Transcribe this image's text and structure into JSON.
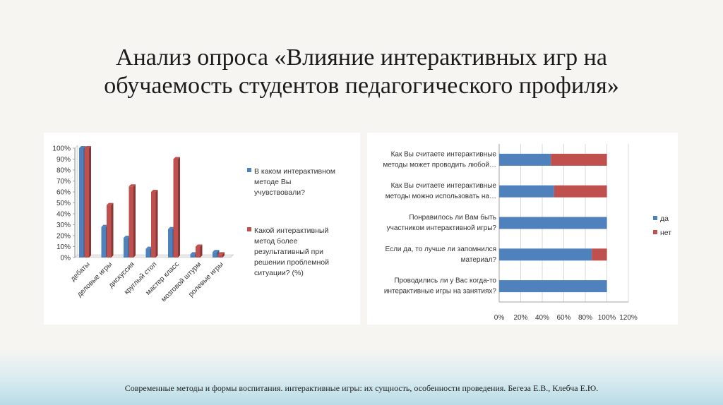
{
  "slide": {
    "title_line1": "Анализ опроса «Влияние интерактивных игр на",
    "title_line2": "обучаемость студентов педагогического профиля»",
    "footer": "Современные методы и формы воспитания. интерактивные игры: их сущность, особенности проведения. Бегеза Е.В., Клебча Е.Ю."
  },
  "chart_data": [
    {
      "type": "bar",
      "categories": [
        "дебаты",
        "деловые игры",
        "дискуссия",
        "круглый стол",
        "мастер класс",
        "мозговой штурм",
        "ролевые игры"
      ],
      "series": [
        {
          "name": "В каком интерактивном методе Вы учувствовали?",
          "legend_lines": [
            "В каком интерактивном",
            "методе Вы",
            "учувствовали?"
          ],
          "color": "#4f81bd",
          "values": [
            100,
            28,
            18,
            8,
            26,
            3,
            5
          ]
        },
        {
          "name": "Какой интерактивный метод более результативный при решении проблемной ситуации? (%)",
          "legend_lines": [
            "Какой интерактивный",
            "метод более",
            "результативный при",
            "решении проблемной",
            "ситуации? (%)"
          ],
          "color": "#c0504d",
          "values": [
            100,
            48,
            65,
            60,
            90,
            10,
            3
          ]
        }
      ],
      "ylim": [
        0,
        100
      ],
      "yticks": [
        "0%",
        "10%",
        "20%",
        "30%",
        "40%",
        "50%",
        "60%",
        "70%",
        "80%",
        "90%",
        "100%"
      ],
      "grid": false,
      "legend_position": "right"
    },
    {
      "type": "bar",
      "orientation": "horizontal",
      "stacked": true,
      "categories": [
        {
          "line1": "Как Вы считаете интерактивные",
          "line2": "методы может проводить любой…"
        },
        {
          "line1": "Как Вы считаете интерактивные",
          "line2": "методы можно использовать на…"
        },
        {
          "line1": "Понравилось ли Вам быть",
          "line2": "участником интерактивной игры?"
        },
        {
          "line1": "Если да, то лучше ли запомнился",
          "line2": "материал?"
        },
        {
          "line1": "Проводились ли у Вас когда-то",
          "line2": "интерактивные игры на занятиях?"
        }
      ],
      "series": [
        {
          "name": "да",
          "color": "#4f81bd",
          "values": [
            48,
            51,
            100,
            86,
            100
          ]
        },
        {
          "name": "нет",
          "color": "#c0504d",
          "values": [
            52,
            49,
            0,
            14,
            0
          ]
        }
      ],
      "xlim": [
        0,
        120
      ],
      "xticks": [
        "0%",
        "20%",
        "40%",
        "60%",
        "80%",
        "100%",
        "120%"
      ],
      "grid": true,
      "legend_position": "right"
    }
  ]
}
